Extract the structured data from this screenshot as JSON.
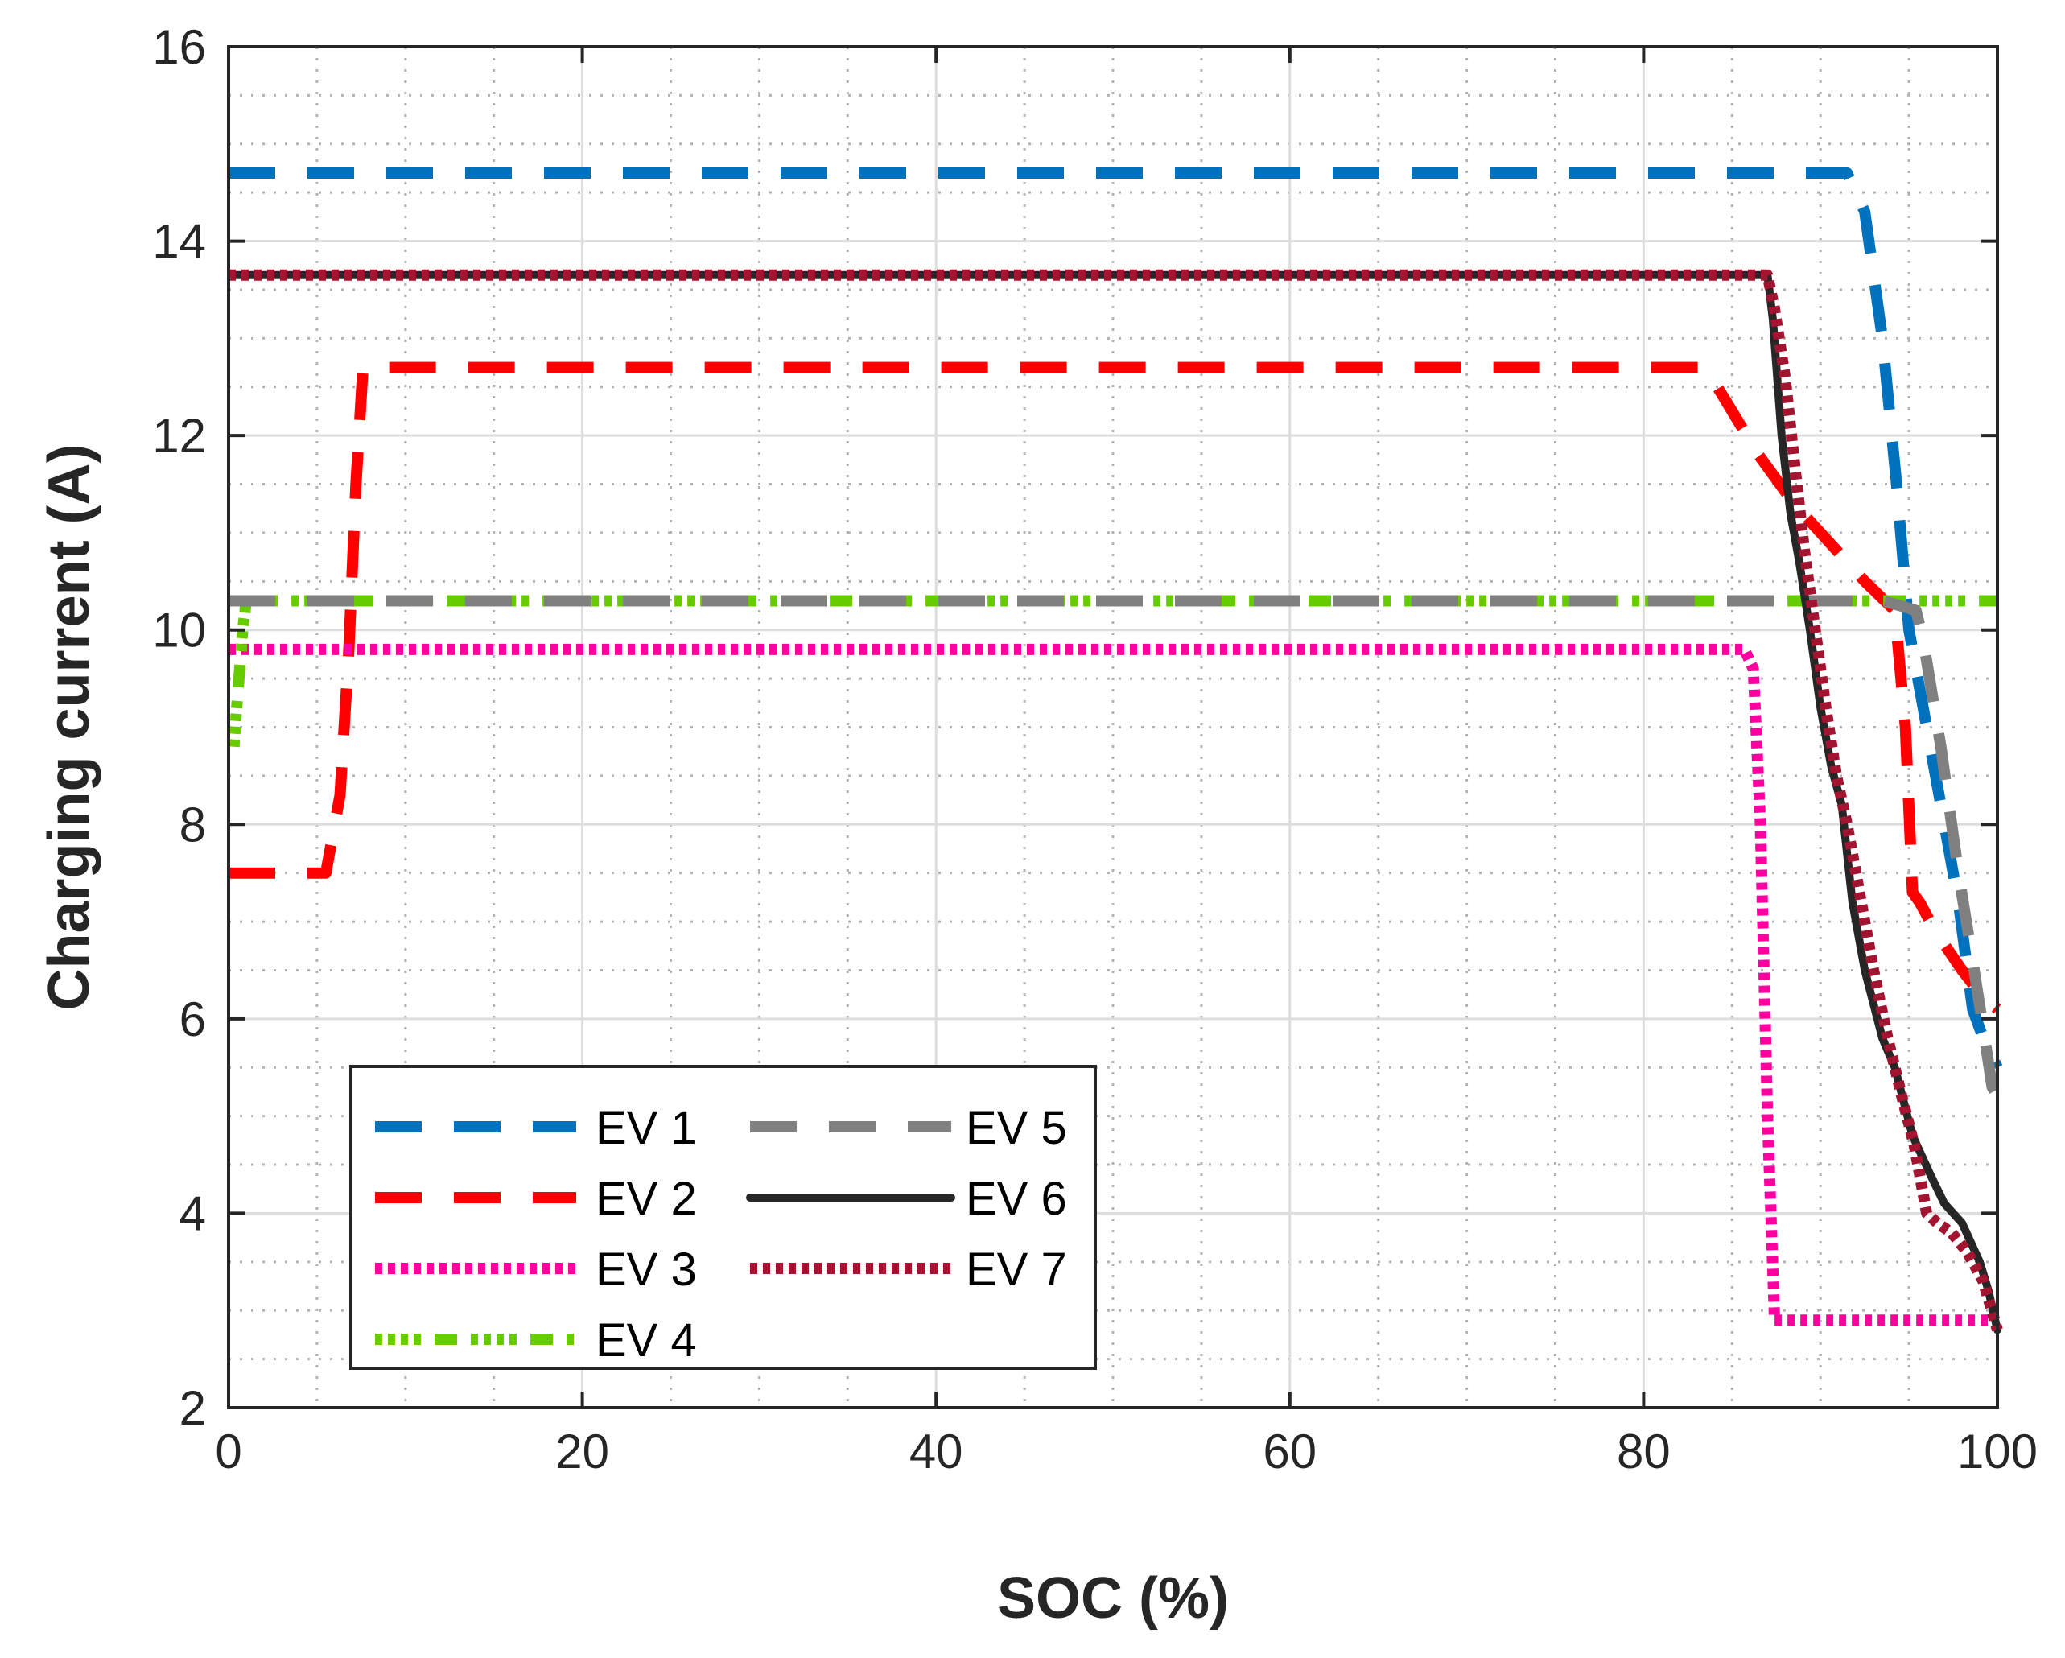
{
  "chart_data": {
    "type": "line",
    "title": "",
    "xlabel": "SOC (%)",
    "ylabel": "Charging current (A)",
    "xlim": [
      0,
      100
    ],
    "ylim": [
      2,
      16
    ],
    "xticks": [
      0,
      20,
      40,
      60,
      80,
      100
    ],
    "yticks": [
      2,
      4,
      6,
      8,
      10,
      12,
      14,
      16
    ],
    "grid": true,
    "minor_grid": true,
    "legend_position": "bottom-left",
    "series": [
      {
        "name": "EV 1",
        "color": "#0072BD",
        "style": "dashed",
        "x": [
          0,
          91.5,
          92.5,
          93.5,
          94.3,
          95,
          95.8,
          96.8,
          97.8,
          98.6,
          99.2,
          100
        ],
        "y": [
          14.7,
          14.7,
          14.3,
          13,
          11.5,
          10,
          9.2,
          8.2,
          7.2,
          6.1,
          5.8,
          5.5
        ]
      },
      {
        "name": "EV 2",
        "color": "#FF0000",
        "style": "dashed",
        "x": [
          0,
          5.5,
          6.3,
          6.8,
          7.2,
          7.6,
          83.5,
          84.5,
          86.5,
          88.5,
          90.5,
          92.5,
          94.2,
          94.8,
          95.2,
          95.6,
          96.5,
          98,
          99.3,
          100
        ],
        "y": [
          7.5,
          7.5,
          8.3,
          9.8,
          11.5,
          12.7,
          12.7,
          12.4,
          11.8,
          11.3,
          10.9,
          10.5,
          10.2,
          9,
          7.3,
          7.2,
          6.9,
          6.5,
          6.2,
          6.1
        ]
      },
      {
        "name": "EV 3",
        "color": "#FF00A0",
        "style": "dotted",
        "x": [
          0,
          85.7,
          86.2,
          86.6,
          87,
          87.4,
          100
        ],
        "y": [
          9.8,
          9.8,
          9.6,
          8,
          5,
          2.9,
          2.9
        ]
      },
      {
        "name": "EV 4",
        "color": "#66CC00",
        "style": "dotted",
        "x": [
          0.3,
          0.5,
          0.8,
          1,
          100
        ],
        "y": [
          8.8,
          9.3,
          10,
          10.3,
          10.3
        ]
      },
      {
        "name": "EV 5",
        "color": "#808080",
        "style": "dashed",
        "x": [
          0,
          93.5,
          94.5,
          95.4,
          95.8,
          96.8,
          97.8,
          98.6,
          99.2,
          99.7,
          100
        ],
        "y": [
          10.3,
          10.3,
          10.25,
          10.2,
          9.9,
          8.8,
          7.5,
          6.6,
          5.9,
          5.3,
          5.2
        ]
      },
      {
        "name": "EV 6",
        "color": "#262626",
        "style": "solid",
        "x": [
          0,
          87,
          87.3,
          87.8,
          88.3,
          88.8,
          89.4,
          90,
          90.6,
          91.2,
          91.8,
          92.5,
          93.5,
          94.2,
          95.2,
          96.2,
          97,
          98,
          99,
          99.5,
          100
        ],
        "y": [
          13.65,
          13.65,
          13.2,
          12,
          11.2,
          10.7,
          10,
          9.2,
          8.6,
          8.2,
          7.2,
          6.5,
          5.8,
          5.5,
          4.8,
          4.4,
          4.1,
          3.9,
          3.5,
          3.2,
          2.8
        ]
      },
      {
        "name": "EV 7",
        "color": "#A2142F",
        "style": "dotted",
        "x": [
          0,
          87,
          87.4,
          88,
          88.6,
          89.1,
          89.7,
          90.3,
          90.9,
          91.5,
          92.2,
          93,
          93.8,
          94.6,
          95.3,
          96,
          96.6,
          97.4,
          98.3,
          99.2,
          100
        ],
        "y": [
          13.65,
          13.65,
          13.3,
          12.6,
          11.6,
          10.8,
          10,
          9.2,
          8.5,
          8,
          7.3,
          6.5,
          5.8,
          5.2,
          4.7,
          4,
          3.9,
          3.8,
          3.6,
          3.3,
          2.8
        ]
      }
    ]
  }
}
